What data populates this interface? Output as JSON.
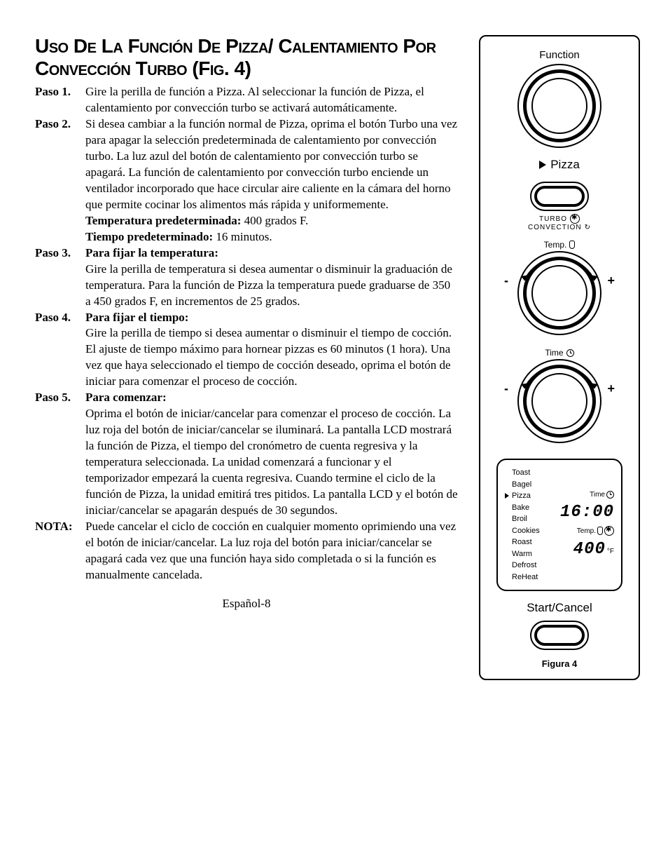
{
  "title": "Uso De La Función De Pizza/ Calentamiento Por Convección Turbo (Fig. 4)",
  "steps": [
    {
      "label": "Paso 1.",
      "body": "Gire la perilla de función a Pizza. Al seleccionar la función de Pizza, el calentamiento por convección turbo se activará automáticamente."
    },
    {
      "label": "Paso 2.",
      "body": "Si desea cambiar a la función normal de Pizza, oprima el botón Turbo una vez para apagar la selección predeterminada de calentamiento por convección turbo. La luz azul del botón de calentamiento por convección turbo se apagará. La función de calentamiento por convección turbo enciende un ventilador incorporado que hace circular aire caliente en la cámara del horno que permite cocinar los alimentos más rápida y uniformemente.",
      "extras": [
        {
          "bold": "Temperatura predeterminada:",
          "rest": " 400 grados F."
        },
        {
          "bold": "Tiempo predeterminado:",
          "rest": " 16 minutos."
        }
      ]
    },
    {
      "label": "Paso 3.",
      "heading": "Para fijar la temperatura:",
      "body": "Gire la perilla de temperatura si desea aumentar o disminuir la graduación de temperatura. Para la función de Pizza la temperatura puede graduarse de 350 a 450 grados F, en incrementos de 25 grados."
    },
    {
      "label": "Paso 4.",
      "heading": "Para fijar el tiempo:",
      "body": "Gire la perilla de tiempo si desea aumentar o disminuir el tiempo de cocción. El ajuste de tiempo máximo para hornear pizzas es 60 minutos (1 hora). Una vez que haya seleccionado el tiempo de cocción deseado, oprima el botón de iniciar para comenzar el proceso de cocción."
    },
    {
      "label": "Paso 5.",
      "heading": "Para comenzar:",
      "body": "Oprima el botón de iniciar/cancelar para comenzar el proceso de cocción. La luz roja del botón de iniciar/cancelar se iluminará. La pantalla LCD mostrará la función de Pizza, el tiempo del cronómetro de cuenta regresiva y la temperatura seleccionada. La unidad comenzará a funcionar y el temporizador empezará la cuenta regresiva. Cuando termine el ciclo de la función de Pizza, la unidad emitirá tres pitidos. La pantalla LCD y el botón de iniciar/cancelar se apagarán después de 30 segundos."
    },
    {
      "label": "NOTA:",
      "body": "Puede cancelar el ciclo de cocción en cualquier momento oprimiendo una vez el botón de iniciar/cancelar. La luz roja del botón para iniciar/cancelar se apagará cada vez que una función haya sido completada o si la función es manualmente cancelada."
    }
  ],
  "footer": "Español-8",
  "panel": {
    "function_label": "Function",
    "pizza_label": "Pizza",
    "turbo_top": "TURBO",
    "turbo_bottom": "CONVECTION",
    "temp_label": "Temp.",
    "time_label": "Time",
    "minus": "-",
    "plus": "+",
    "lcd": {
      "modes": [
        "Toast",
        "Bagel",
        "Pizza",
        "Bake",
        "Broil",
        "Cookies",
        "Roast",
        "Warm",
        "Defrost",
        "ReHeat"
      ],
      "selected_index": 2,
      "time_label": "Time",
      "time_value": "16:00",
      "temp_label": "Temp.",
      "temp_value": "400",
      "temp_unit": "°F"
    },
    "start_label": "Start/Cancel",
    "figure_caption": "Figura 4"
  },
  "colors": {
    "fg": "#000000",
    "bg": "#ffffff"
  }
}
